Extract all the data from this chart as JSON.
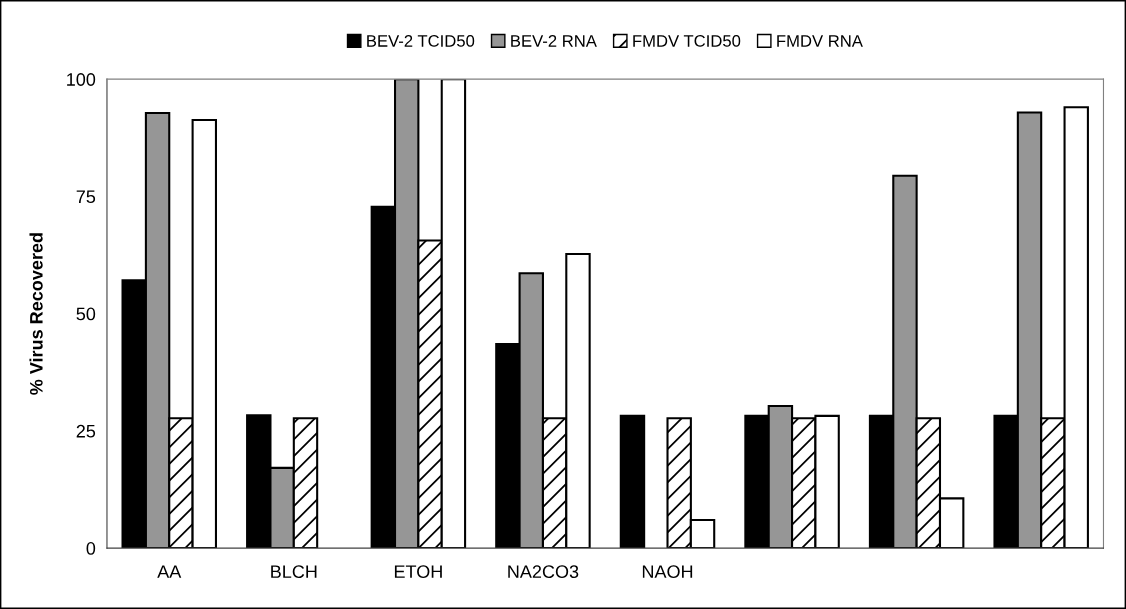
{
  "chart_data": {
    "type": "bar",
    "ylabel": "% Virus Recovered",
    "categories": [
      "AA",
      "BLCH",
      "ETOH",
      "NA2CO3",
      "NAOH",
      null,
      null,
      null
    ],
    "series": [
      {
        "name": "BEV-2 TCID50",
        "color": "#000000",
        "values": [
          57.1,
          28.3,
          72.8,
          43.5,
          28.2,
          28.2,
          28.2,
          28.2
        ]
      },
      {
        "name": "BEV-2 RNA",
        "color": "#969696",
        "values": [
          92.8,
          17.1,
          100,
          58.6,
          null,
          30.3,
          79.4,
          92.9
        ]
      },
      {
        "name": "FMDV TCID50",
        "color": "#000000",
        "values": [
          27.7,
          27.7,
          65.6,
          27.7,
          27.7,
          27.7,
          27.7,
          27.7
        ]
      },
      {
        "name": "FMDV RNA",
        "color": "#ffffff",
        "values": [
          91.3,
          null,
          100,
          62.7,
          6.0,
          28.2,
          10.6,
          94.0
        ]
      }
    ],
    "ylim": [
      0,
      100
    ],
    "yticks": [
      0,
      25,
      50,
      75,
      100
    ],
    "grid": false,
    "legend": "top"
  }
}
